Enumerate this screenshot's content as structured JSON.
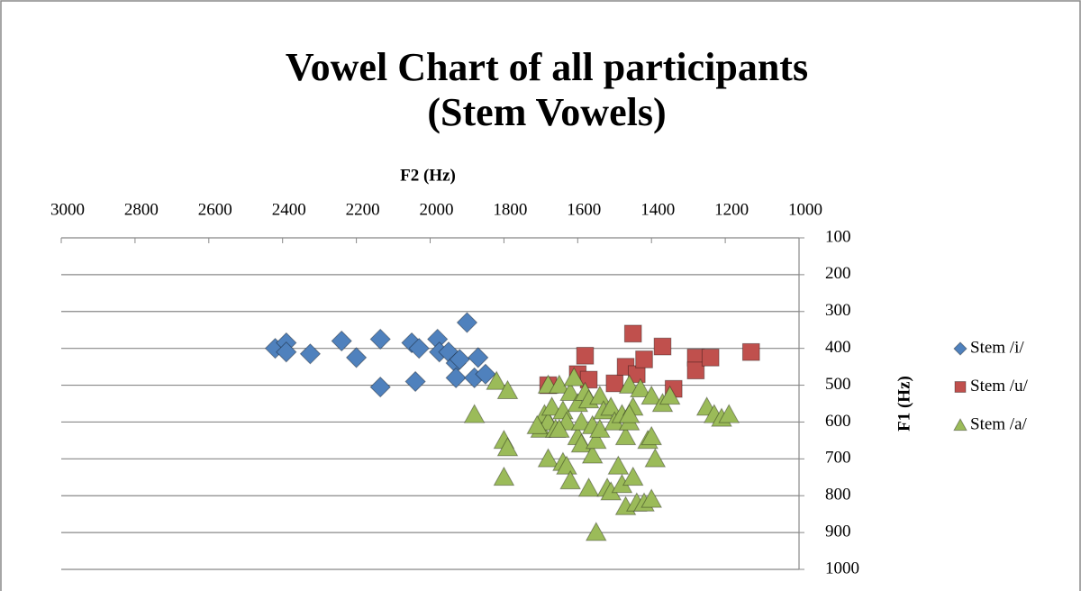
{
  "chart_data": {
    "type": "scatter",
    "title": [
      "Vowel Chart of all participants",
      "(Stem Vowels)"
    ],
    "x_label": "F2 (Hz)",
    "y_label": "F1 (Hz)",
    "xlim": [
      3000,
      1000
    ],
    "xticks": [
      3000,
      2800,
      2600,
      2400,
      2200,
      2000,
      1800,
      1600,
      1400,
      1200,
      1000
    ],
    "ylim": [
      100,
      1000
    ],
    "yticks": [
      100,
      200,
      300,
      400,
      500,
      600,
      700,
      800,
      900,
      1000
    ],
    "x_reversed": true,
    "y_reversed": true,
    "grid": true,
    "legend": "right",
    "series": [
      {
        "name": "Stem /i/",
        "color": "#4f81bd",
        "marker": "diamond",
        "x": [
          2420,
          2390,
          2390,
          2325,
          2240,
          2200,
          2135,
          2135,
          2050,
          2030,
          2040,
          1980,
          1975,
          1950,
          1930,
          1920,
          1900,
          1930,
          1880,
          1870,
          1850
        ],
        "values": [
          400,
          385,
          410,
          415,
          380,
          425,
          375,
          505,
          385,
          400,
          490,
          375,
          410,
          410,
          440,
          430,
          330,
          480,
          480,
          425,
          470
        ]
      },
      {
        "name": "Stem /u/",
        "color": "#c0504d",
        "marker": "square",
        "x": [
          1680,
          1600,
          1580,
          1570,
          1500,
          1470,
          1450,
          1440,
          1420,
          1370,
          1340,
          1280,
          1280,
          1240,
          1130
        ],
        "values": [
          500,
          470,
          420,
          485,
          495,
          450,
          360,
          470,
          430,
          395,
          510,
          425,
          460,
          425,
          410
        ]
      },
      {
        "name": "Stem /a/",
        "color": "#9bbb59",
        "marker": "triangle",
        "x": [
          1820,
          1790,
          1880,
          1800,
          1790,
          1800,
          1680,
          1700,
          1690,
          1680,
          1680,
          1670,
          1660,
          1650,
          1640,
          1640,
          1630,
          1630,
          1620,
          1620,
          1610,
          1600,
          1600,
          1590,
          1590,
          1580,
          1570,
          1570,
          1560,
          1560,
          1550,
          1550,
          1540,
          1540,
          1530,
          1520,
          1510,
          1510,
          1500,
          1490,
          1480,
          1480,
          1470,
          1470,
          1460,
          1460,
          1450,
          1450,
          1440,
          1430,
          1420,
          1410,
          1400,
          1400,
          1400,
          1390,
          1370,
          1350,
          1250,
          1230,
          1210,
          1190,
          1460,
          1650,
          1710
        ],
        "values": [
          490,
          515,
          580,
          650,
          670,
          750,
          500,
          620,
          580,
          600,
          700,
          560,
          620,
          500,
          570,
          710,
          720,
          600,
          760,
          520,
          480,
          640,
          550,
          600,
          660,
          520,
          780,
          540,
          610,
          690,
          900,
          650,
          530,
          620,
          570,
          780,
          560,
          790,
          600,
          720,
          770,
          580,
          830,
          640,
          500,
          600,
          560,
          750,
          820,
          510,
          820,
          650,
          530,
          640,
          810,
          700,
          550,
          530,
          560,
          580,
          590,
          580,
          580,
          620,
          610
        ]
      }
    ]
  }
}
